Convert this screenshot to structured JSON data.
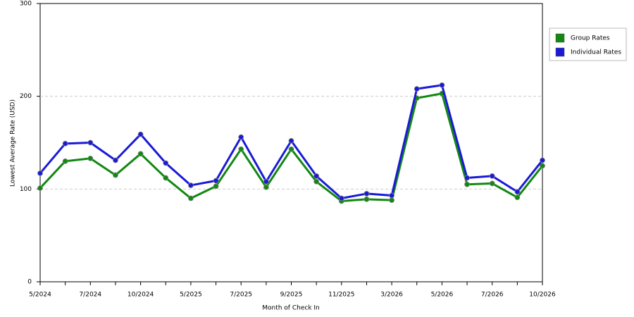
{
  "chart_data": {
    "type": "line",
    "x_label": "Month of Check In",
    "y_label": "Lowest Average Rate (USD)",
    "categories": [
      "5/2024",
      null,
      "7/2024",
      null,
      "10/2024",
      null,
      "5/2025",
      null,
      "7/2025",
      null,
      "9/2025",
      null,
      "11/2025",
      null,
      "3/2026",
      null,
      "5/2026",
      null,
      "7/2026",
      null,
      "10/2026"
    ],
    "series": [
      {
        "name": "Group Rates",
        "color": "#118811",
        "values": [
          101,
          130,
          133,
          115,
          138,
          112,
          90,
          103,
          143,
          102,
          143,
          108,
          87,
          89,
          88,
          198,
          203,
          105,
          106,
          91,
          125
        ]
      },
      {
        "name": "Individual Rates",
        "color": "#1a1ad6",
        "values": [
          117,
          149,
          150,
          131,
          159,
          128,
          104,
          109,
          156,
          108,
          152,
          114,
          90,
          95,
          93,
          208,
          212,
          112,
          114,
          97,
          131
        ]
      }
    ],
    "ylim": [
      0,
      300
    ],
    "yticks": [
      0,
      100,
      200,
      300
    ],
    "grid": true,
    "legend": "right"
  }
}
